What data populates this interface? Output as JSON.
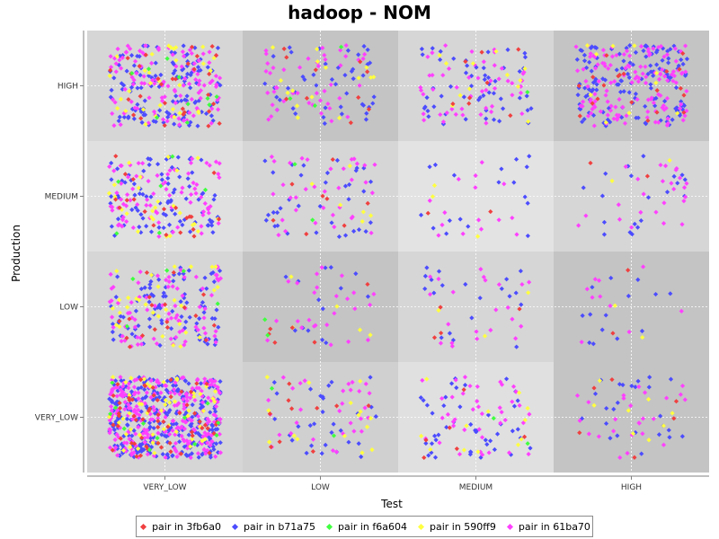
{
  "colors": {
    "3fb6a0": "#f04040",
    "b71a75": "#4c4cff",
    "f6a604": "#40ff40",
    "590ff9": "#ffff40",
    "61ba70": "#ff40ff"
  },
  "chart_data": {
    "type": "scatter",
    "title": "hadoop - NOM",
    "xlabel": "Test",
    "ylabel": "Production",
    "x_categories": [
      "VERY_LOW",
      "LOW",
      "MEDIUM",
      "HIGH"
    ],
    "y_categories": [
      "VERY_LOW",
      "LOW",
      "MEDIUM",
      "HIGH"
    ],
    "grid": true,
    "legend_position": "bottom",
    "series": [
      {
        "name": "pair in 3fb6a0",
        "key": "3fb6a0"
      },
      {
        "name": "pair in b71a75",
        "key": "b71a75"
      },
      {
        "name": "pair in f6a604",
        "key": "f6a604"
      },
      {
        "name": "pair in 590ff9",
        "key": "590ff9"
      },
      {
        "name": "pair in 61ba70",
        "key": "61ba70"
      }
    ],
    "cells": [
      {
        "x": "VERY_LOW",
        "y": "HIGH",
        "counts": {
          "3fb6a0": 30,
          "b71a75": 130,
          "f6a604": 10,
          "590ff9": 30,
          "61ba70": 110
        }
      },
      {
        "x": "LOW",
        "y": "HIGH",
        "counts": {
          "3fb6a0": 10,
          "b71a75": 45,
          "f6a604": 3,
          "590ff9": 15,
          "61ba70": 45
        }
      },
      {
        "x": "MEDIUM",
        "y": "HIGH",
        "counts": {
          "3fb6a0": 8,
          "b71a75": 55,
          "f6a604": 1,
          "590ff9": 12,
          "61ba70": 50
        }
      },
      {
        "x": "HIGH",
        "y": "HIGH",
        "counts": {
          "3fb6a0": 20,
          "b71a75": 140,
          "f6a604": 0,
          "590ff9": 10,
          "61ba70": 130
        }
      },
      {
        "x": "VERY_LOW",
        "y": "MEDIUM",
        "counts": {
          "3fb6a0": 20,
          "b71a75": 90,
          "f6a604": 6,
          "590ff9": 25,
          "61ba70": 80
        }
      },
      {
        "x": "LOW",
        "y": "MEDIUM",
        "counts": {
          "3fb6a0": 8,
          "b71a75": 35,
          "f6a604": 2,
          "590ff9": 6,
          "61ba70": 35
        }
      },
      {
        "x": "MEDIUM",
        "y": "MEDIUM",
        "counts": {
          "3fb6a0": 2,
          "b71a75": 18,
          "f6a604": 0,
          "590ff9": 3,
          "61ba70": 15
        }
      },
      {
        "x": "HIGH",
        "y": "MEDIUM",
        "counts": {
          "3fb6a0": 2,
          "b71a75": 20,
          "f6a604": 0,
          "590ff9": 2,
          "61ba70": 25
        }
      },
      {
        "x": "VERY_LOW",
        "y": "LOW",
        "counts": {
          "3fb6a0": 18,
          "b71a75": 90,
          "f6a604": 5,
          "590ff9": 30,
          "61ba70": 80
        }
      },
      {
        "x": "LOW",
        "y": "LOW",
        "counts": {
          "3fb6a0": 6,
          "b71a75": 14,
          "f6a604": 2,
          "590ff9": 5,
          "61ba70": 25
        }
      },
      {
        "x": "MEDIUM",
        "y": "LOW",
        "counts": {
          "3fb6a0": 4,
          "b71a75": 20,
          "f6a604": 0,
          "590ff9": 3,
          "61ba70": 22
        }
      },
      {
        "x": "HIGH",
        "y": "LOW",
        "counts": {
          "3fb6a0": 2,
          "b71a75": 14,
          "f6a604": 0,
          "590ff9": 2,
          "61ba70": 10
        }
      },
      {
        "x": "VERY_LOW",
        "y": "VERY_LOW",
        "counts": {
          "3fb6a0": 60,
          "b71a75": 300,
          "f6a604": 12,
          "590ff9": 50,
          "61ba70": 240
        }
      },
      {
        "x": "LOW",
        "y": "VERY_LOW",
        "counts": {
          "3fb6a0": 10,
          "b71a75": 30,
          "f6a604": 2,
          "590ff9": 15,
          "61ba70": 30
        }
      },
      {
        "x": "MEDIUM",
        "y": "VERY_LOW",
        "counts": {
          "3fb6a0": 6,
          "b71a75": 45,
          "f6a604": 2,
          "590ff9": 12,
          "61ba70": 40
        }
      },
      {
        "x": "HIGH",
        "y": "VERY_LOW",
        "counts": {
          "3fb6a0": 6,
          "b71a75": 25,
          "f6a604": 0,
          "590ff9": 8,
          "61ba70": 25
        }
      }
    ]
  }
}
